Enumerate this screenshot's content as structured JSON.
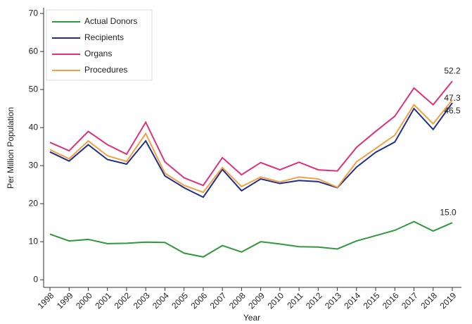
{
  "chart_data": {
    "type": "line",
    "x_label": "Year",
    "y_label": "Per Million Population",
    "categories": [
      "1998",
      "1999",
      "2000",
      "2001",
      "2002",
      "2003",
      "2004",
      "2005",
      "2006",
      "2007",
      "2008",
      "2009",
      "2010",
      "2011",
      "2012",
      "2013",
      "2014",
      "2015",
      "2016",
      "2017",
      "2018",
      "2019"
    ],
    "series": [
      {
        "name": "Actual Donors",
        "color": "#2e9a3c",
        "values": [
          12.0,
          10.2,
          10.6,
          9.5,
          9.6,
          9.9,
          9.8,
          7.0,
          6.0,
          9.0,
          7.3,
          10.0,
          9.4,
          8.7,
          8.6,
          8.1,
          10.2,
          11.6,
          13.0,
          15.3,
          12.8,
          15.0
        ],
        "value_labels": [
          null,
          null,
          null,
          null,
          null,
          null,
          null,
          null,
          null,
          null,
          null,
          null,
          null,
          null,
          null,
          null,
          null,
          null,
          null,
          null,
          null,
          "15.0"
        ]
      },
      {
        "name": "Recipients",
        "color": "#1f2f8f",
        "values": [
          33.6,
          31.2,
          35.5,
          31.6,
          30.4,
          36.5,
          27.3,
          24.2,
          21.7,
          29.0,
          23.4,
          26.5,
          25.3,
          26.1,
          25.8,
          24.2,
          29.6,
          33.5,
          36.2,
          45.0,
          39.5,
          46.5
        ],
        "value_labels": [
          null,
          null,
          null,
          null,
          null,
          null,
          null,
          null,
          null,
          null,
          null,
          null,
          null,
          null,
          null,
          null,
          null,
          null,
          null,
          null,
          null,
          "46.5"
        ]
      },
      {
        "name": "Organs",
        "color": "#e0307a",
        "values": [
          36.1,
          33.9,
          39.0,
          35.5,
          33.0,
          41.4,
          31.0,
          26.8,
          24.8,
          32.1,
          27.6,
          30.8,
          28.9,
          30.9,
          28.9,
          28.6,
          34.8,
          39.0,
          43.0,
          50.4,
          46.0,
          52.2
        ],
        "value_labels": [
          null,
          null,
          null,
          null,
          null,
          null,
          null,
          null,
          null,
          null,
          null,
          null,
          null,
          null,
          null,
          null,
          null,
          null,
          null,
          null,
          null,
          "52.2"
        ]
      },
      {
        "name": "Procedures",
        "color": "#f5a040",
        "values": [
          34.2,
          31.8,
          36.5,
          32.6,
          31.1,
          38.4,
          28.0,
          24.8,
          23.0,
          29.5,
          24.5,
          27.0,
          25.7,
          27.0,
          26.5,
          24.3,
          31.0,
          34.5,
          38.0,
          46.0,
          41.0,
          47.3
        ],
        "value_labels": [
          null,
          null,
          null,
          null,
          null,
          null,
          null,
          null,
          null,
          null,
          null,
          null,
          null,
          null,
          null,
          null,
          null,
          null,
          null,
          null,
          null,
          "47.3"
        ]
      }
    ],
    "ylim": [
      -2,
      71.5
    ],
    "yticks": [
      0,
      10,
      20,
      30,
      40,
      50,
      60,
      70
    ],
    "legend": "top-left"
  }
}
